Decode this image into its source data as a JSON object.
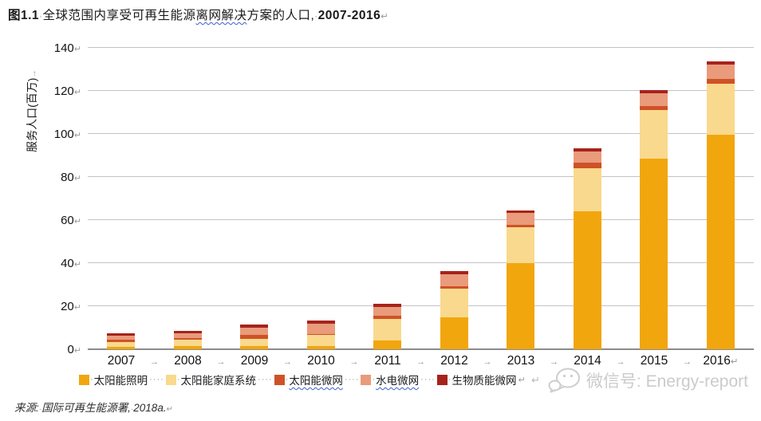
{
  "title": {
    "figure_label": "图1.1",
    "space_mark": "·",
    "text_before": "全球范围内享受可再生能源",
    "text_wavy": "离网解决",
    "text_after": "方案的人口,",
    "space_mark2": "·",
    "years": "2007-2016",
    "paragraph_mark": "↵"
  },
  "y_axis": {
    "label": "服务人口(百万)",
    "tab_mark": "→",
    "ticks": [
      0,
      20,
      40,
      60,
      80,
      100,
      120,
      140
    ],
    "tick_mark": "↵"
  },
  "x_axis": {
    "tab_mark": "→",
    "end_mark": "↵"
  },
  "legend": {
    "swatch_space_mark": "·",
    "separator": "····",
    "end_mark": "↵",
    "items": [
      {
        "label": "太阳能照明",
        "color": "#F2A60E",
        "wavy": false
      },
      {
        "label": "太阳能家庭系统",
        "color": "#F9D98D",
        "wavy": false
      },
      {
        "label": "太阳能微网",
        "color": "#CF5227",
        "wavy": true
      },
      {
        "label": "水电微网",
        "color": "#E99B7B",
        "wavy": true
      },
      {
        "label": "生物质能微网",
        "color": "#A6231C",
        "wavy": false
      }
    ]
  },
  "chart_data": {
    "type": "bar",
    "stacked": true,
    "title": "图1.1 全球范围内享受可再生能源离网解决方案的人口, 2007-2016",
    "xlabel": "",
    "ylabel": "服务人口(百万)",
    "ylim": [
      0,
      140
    ],
    "y_tick_step": 20,
    "grid": true,
    "legend_position": "bottom",
    "categories": [
      "2007",
      "2008",
      "2009",
      "2010",
      "2011",
      "2012",
      "2013",
      "2014",
      "2015",
      "2016"
    ],
    "series": [
      {
        "name": "太阳能照明",
        "color": "#F2A60E",
        "values": [
          1.0,
          1.5,
          1.6,
          1.5,
          4.0,
          15.0,
          40.0,
          64.0,
          88.5,
          99.5
        ]
      },
      {
        "name": "太阳能家庭系统",
        "color": "#F9D98D",
        "values": [
          2.2,
          3.0,
          3.2,
          5.2,
          10.0,
          13.3,
          16.7,
          20.0,
          22.7,
          24.0
        ]
      },
      {
        "name": "太阳能微网",
        "color": "#CF5227",
        "values": [
          1.1,
          0.6,
          1.7,
          0.5,
          1.6,
          1.1,
          1.2,
          2.7,
          1.6,
          2.1
        ]
      },
      {
        "name": "水电微网",
        "color": "#E99B7B",
        "values": [
          1.9,
          2.2,
          3.4,
          4.7,
          4.1,
          5.3,
          5.3,
          5.3,
          6.2,
          6.5
        ]
      },
      {
        "name": "生物质能微网",
        "color": "#A6231C",
        "values": [
          1.1,
          1.4,
          1.5,
          1.5,
          1.5,
          1.5,
          1.3,
          1.5,
          1.3,
          1.5
        ]
      }
    ],
    "totals": [
      7.3,
      8.7,
      11.4,
      13.4,
      21.2,
      36.2,
      64.5,
      93.5,
      120.3,
      133.6
    ]
  },
  "source": {
    "label": "来源:",
    "space_mark": "·",
    "agency": "国际可再生能源署,",
    "year": "2018a.",
    "end_mark": "↵"
  },
  "watermark": {
    "line_mark": "↵",
    "icon": "wechat-icon",
    "text": "微信号: Energy-report"
  }
}
